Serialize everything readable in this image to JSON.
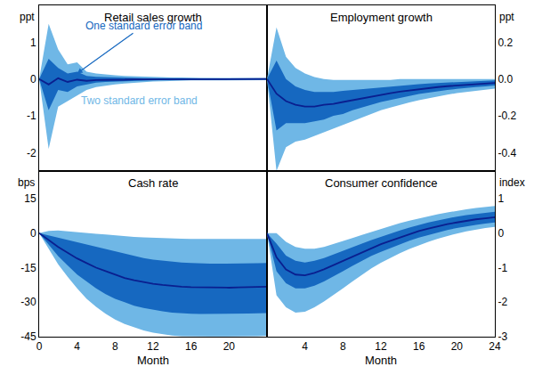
{
  "chart_data": [
    {
      "type": "line",
      "title": "Retail sales growth",
      "ylabel": "ppt",
      "x": [
        0,
        1,
        2,
        3,
        4,
        5,
        6,
        7,
        8,
        9,
        10,
        11,
        12,
        13,
        14,
        15,
        16,
        17,
        18,
        19,
        20,
        21,
        22,
        23,
        24
      ],
      "values": [
        0,
        -0.15,
        0.02,
        -0.08,
        -0.02,
        -0.05,
        -0.03,
        -0.03,
        -0.02,
        -0.02,
        -0.01,
        -0.01,
        -0.01,
        0,
        0,
        0,
        0,
        0,
        0,
        0,
        0,
        0,
        0,
        0,
        0
      ],
      "color": "#0a1f8f",
      "bands": [
        {
          "color": "#6fb7e6",
          "lower": [
            0,
            -1.9,
            -0.75,
            -0.6,
            -0.45,
            -0.3,
            -0.22,
            -0.18,
            -0.15,
            -0.12,
            -0.1,
            -0.08,
            -0.07,
            -0.06,
            -0.05,
            -0.05,
            -0.04,
            -0.04,
            -0.04,
            -0.03,
            -0.03,
            -0.03,
            -0.03,
            -0.03,
            -0.03
          ],
          "upper": [
            0,
            1.5,
            0.8,
            0.4,
            0.45,
            0.2,
            0.15,
            0.12,
            0.1,
            0.08,
            0.07,
            0.06,
            0.05,
            0.05,
            0.04,
            0.04,
            0.03,
            0.03,
            0.03,
            0.03,
            0.03,
            0.03,
            0.03,
            0.03,
            0.03
          ]
        },
        {
          "color": "#1668c0",
          "lower": [
            0,
            -0.85,
            -0.3,
            -0.35,
            -0.2,
            -0.15,
            -0.1,
            -0.08,
            -0.07,
            -0.06,
            -0.05,
            -0.04,
            -0.03,
            -0.03,
            -0.02,
            -0.02,
            -0.02,
            -0.02,
            -0.02,
            -0.02,
            -0.02,
            -0.02,
            -0.02,
            -0.02,
            -0.02
          ],
          "upper": [
            0,
            0.55,
            0.3,
            0.15,
            0.2,
            0.08,
            0.06,
            0.05,
            0.04,
            0.03,
            0.03,
            0.02,
            0.02,
            0.02,
            0.01,
            0.01,
            0.01,
            0.01,
            0.01,
            0.01,
            0.01,
            0.01,
            0.01,
            0.01,
            0.01
          ]
        }
      ],
      "xlim": [
        0,
        24
      ],
      "xticks": [
        0,
        4,
        8,
        12,
        16,
        20,
        24
      ],
      "tick_labels": "y",
      "ylim": [
        -2.5,
        2
      ],
      "yticks": [
        1,
        0,
        -1,
        -2
      ],
      "grid": false,
      "annotations": [
        {
          "text": "One standard error band",
          "x": 11,
          "y": 1.45,
          "arrow_x": 4,
          "arrow_y": 0.15,
          "color": "#1668c0"
        },
        {
          "text": "Two standard error band",
          "x": 10.5,
          "y": -0.6,
          "color": "#6fb7e6"
        }
      ]
    },
    {
      "type": "line",
      "title": "Employment growth",
      "ylabel": "ppt",
      "x": [
        0,
        1,
        2,
        3,
        4,
        5,
        6,
        7,
        8,
        9,
        10,
        11,
        12,
        13,
        14,
        15,
        16,
        17,
        18,
        19,
        20,
        21,
        22,
        23,
        24
      ],
      "values": [
        0,
        -0.08,
        -0.12,
        -0.14,
        -0.15,
        -0.15,
        -0.14,
        -0.135,
        -0.125,
        -0.115,
        -0.105,
        -0.095,
        -0.085,
        -0.077,
        -0.069,
        -0.062,
        -0.055,
        -0.049,
        -0.044,
        -0.039,
        -0.035,
        -0.031,
        -0.028,
        -0.025,
        -0.022
      ],
      "color": "#0a1f8f",
      "bands": [
        {
          "color": "#6fb7e6",
          "lower": [
            0,
            -0.5,
            -0.37,
            -0.34,
            -0.33,
            -0.31,
            -0.29,
            -0.27,
            -0.25,
            -0.23,
            -0.21,
            -0.19,
            -0.17,
            -0.155,
            -0.14,
            -0.127,
            -0.115,
            -0.104,
            -0.094,
            -0.085,
            -0.077,
            -0.07,
            -0.064,
            -0.058,
            -0.053
          ],
          "upper": [
            0,
            0.28,
            0.12,
            0.06,
            0.03,
            0.01,
            0,
            -0.005,
            -0.005,
            -0.005,
            -0.005,
            -0.005,
            -0.005,
            -0.005,
            0,
            0,
            0,
            0,
            0,
            0,
            0,
            0,
            0,
            0,
            0
          ]
        },
        {
          "color": "#1668c0",
          "lower": [
            0,
            -0.28,
            -0.24,
            -0.24,
            -0.24,
            -0.23,
            -0.22,
            -0.2,
            -0.19,
            -0.17,
            -0.155,
            -0.14,
            -0.125,
            -0.114,
            -0.102,
            -0.092,
            -0.082,
            -0.074,
            -0.067,
            -0.06,
            -0.054,
            -0.048,
            -0.044,
            -0.04,
            -0.036
          ],
          "upper": [
            0,
            0.1,
            0,
            -0.04,
            -0.06,
            -0.07,
            -0.07,
            -0.07,
            -0.065,
            -0.06,
            -0.055,
            -0.05,
            -0.045,
            -0.04,
            -0.036,
            -0.032,
            -0.028,
            -0.024,
            -0.021,
            -0.018,
            -0.016,
            -0.014,
            -0.012,
            -0.01,
            -0.008
          ]
        }
      ],
      "xlim": [
        0,
        24
      ],
      "xticks": [
        0,
        4,
        8,
        12,
        16,
        20,
        24
      ],
      "tick_labels": "y",
      "ylim": [
        -0.5,
        0.4
      ],
      "yticks": [
        0.2,
        {
          "value": 0,
          "label": "0.0"
        },
        -0.2,
        -0.4
      ],
      "grid": false
    },
    {
      "type": "line",
      "title": "Cash rate",
      "ylabel": "bps",
      "xlabel": "Month",
      "x": [
        0,
        1,
        2,
        3,
        4,
        5,
        6,
        7,
        8,
        9,
        10,
        11,
        12,
        13,
        14,
        15,
        16,
        17,
        18,
        19,
        20,
        21,
        22,
        23,
        24
      ],
      "values": [
        0,
        -3,
        -6,
        -8.5,
        -11,
        -13,
        -15,
        -16.5,
        -18,
        -19.5,
        -20.5,
        -21.3,
        -22,
        -22.5,
        -23,
        -23.3,
        -23.5,
        -23.6,
        -23.7,
        -23.7,
        -23.7,
        -23.6,
        -23.5,
        -23.4,
        -23.3
      ],
      "color": "#0a1f8f",
      "bands": [
        {
          "color": "#6fb7e6",
          "lower": [
            0,
            -7,
            -13.5,
            -19,
            -24,
            -28.5,
            -32,
            -35,
            -37.5,
            -39.5,
            -41,
            -42.3,
            -43.3,
            -44,
            -44.5,
            -44.8,
            -44.9,
            -44.9,
            -44.9,
            -44.9,
            -44.9,
            -44.9,
            -44.9,
            -44.8,
            -44.6
          ],
          "upper": [
            0,
            1,
            1.2,
            0.8,
            0.3,
            0,
            -0.3,
            -0.6,
            -1,
            -1.3,
            -1.6,
            -1.8,
            -2,
            -2.2,
            -2.3,
            -2.4,
            -2.5,
            -2.5,
            -2.5,
            -2.5,
            -2.5,
            -2.5,
            -2.5,
            -2.5,
            -2.5
          ]
        },
        {
          "color": "#1668c0",
          "lower": [
            0,
            -5,
            -10,
            -14,
            -18,
            -21,
            -24,
            -26.5,
            -28.5,
            -30,
            -31.5,
            -32.5,
            -33.3,
            -34,
            -34.5,
            -34.8,
            -35,
            -35.1,
            -35.1,
            -35.1,
            -35,
            -35,
            -34.9,
            -34.8,
            -34.7
          ],
          "upper": [
            0,
            -1,
            -2,
            -3,
            -4,
            -5,
            -6,
            -7,
            -8,
            -9,
            -10,
            -10.8,
            -11.5,
            -12,
            -12.5,
            -12.8,
            -13,
            -13.2,
            -13.3,
            -13.3,
            -13.3,
            -13.3,
            -13.2,
            -13.1,
            -13
          ]
        }
      ],
      "xlim": [
        0,
        24
      ],
      "xticks": [
        0,
        4,
        8,
        12,
        16,
        20
      ],
      "ylim": [
        -45,
        27
      ],
      "yticks": [
        15,
        0,
        -15,
        -30,
        -45
      ],
      "grid": false
    },
    {
      "type": "line",
      "title": "Consumer confidence",
      "ylabel": "index",
      "xlabel": "Month",
      "x": [
        0,
        1,
        2,
        3,
        4,
        5,
        6,
        7,
        8,
        9,
        10,
        11,
        12,
        13,
        14,
        15,
        16,
        17,
        18,
        19,
        20,
        21,
        22,
        23,
        24
      ],
      "values": [
        0,
        -0.7,
        -1.05,
        -1.2,
        -1.22,
        -1.15,
        -1.05,
        -0.93,
        -0.8,
        -0.68,
        -0.55,
        -0.43,
        -0.32,
        -0.22,
        -0.12,
        -0.03,
        0.06,
        0.13,
        0.2,
        0.26,
        0.31,
        0.36,
        0.4,
        0.43,
        0.46
      ],
      "color": "#0a1f8f",
      "bands": [
        {
          "color": "#6fb7e6",
          "lower": [
            0,
            -1.8,
            -2.15,
            -2.3,
            -2.28,
            -2.15,
            -1.98,
            -1.8,
            -1.6,
            -1.4,
            -1.2,
            -1.02,
            -0.86,
            -0.71,
            -0.58,
            -0.46,
            -0.35,
            -0.25,
            -0.16,
            -0.08,
            -0.01,
            0.05,
            0.1,
            0.15,
            0.18
          ],
          "upper": [
            0,
            0,
            -0.25,
            -0.4,
            -0.45,
            -0.45,
            -0.4,
            -0.32,
            -0.23,
            -0.14,
            -0.05,
            0.04,
            0.13,
            0.21,
            0.29,
            0.36,
            0.43,
            0.49,
            0.55,
            0.6,
            0.65,
            0.69,
            0.73,
            0.76,
            0.79
          ]
        },
        {
          "color": "#1668c0",
          "lower": [
            0,
            -1.1,
            -1.45,
            -1.6,
            -1.6,
            -1.52,
            -1.4,
            -1.26,
            -1.1,
            -0.95,
            -0.8,
            -0.66,
            -0.54,
            -0.43,
            -0.32,
            -0.22,
            -0.13,
            -0.05,
            0.03,
            0.09,
            0.15,
            0.2,
            0.24,
            0.28,
            0.31
          ],
          "upper": [
            0,
            -0.3,
            -0.65,
            -0.8,
            -0.85,
            -0.8,
            -0.72,
            -0.62,
            -0.52,
            -0.41,
            -0.3,
            -0.2,
            -0.1,
            -0.01,
            0.08,
            0.16,
            0.24,
            0.31,
            0.37,
            0.43,
            0.48,
            0.52,
            0.56,
            0.59,
            0.62
          ]
        }
      ],
      "xlim": [
        0,
        24
      ],
      "xticks": [
        4,
        8,
        12,
        16,
        20,
        24
      ],
      "ylim": [
        -3,
        1.8
      ],
      "yticks": [
        1,
        0,
        -1,
        -2,
        -3
      ],
      "grid": false
    }
  ]
}
